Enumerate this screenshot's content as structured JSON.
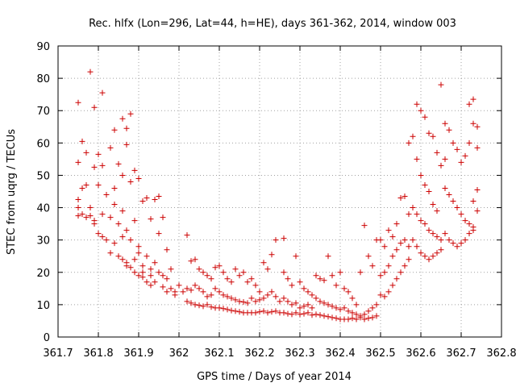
{
  "chart_data": {
    "type": "scatter",
    "title": "Rec. hlfx (Lon=296, Lat=44, h=HE), days 361-362, 2014, window 003",
    "xlabel": "GPS time / Days of year 2014",
    "ylabel": "STEC from uqrg / TECUs",
    "xlim": [
      361.7,
      362.8
    ],
    "ylim": [
      0,
      90
    ],
    "x_ticks": [
      361.7,
      361.8,
      361.9,
      362.0,
      362.1,
      362.2,
      362.3,
      362.4,
      362.5,
      362.6,
      362.7,
      362.8
    ],
    "x_tick_labels": [
      "361.7",
      "361.8",
      "361.9",
      "362",
      "362.1",
      "362.2",
      "362.3",
      "362.4",
      "362.5",
      "362.6",
      "362.7",
      "362.8"
    ],
    "y_ticks": [
      0,
      10,
      20,
      30,
      40,
      50,
      60,
      70,
      80,
      90
    ],
    "y_tick_labels": [
      "0",
      "10",
      "20",
      "30",
      "40",
      "50",
      "60",
      "70",
      "80",
      "90"
    ],
    "marker": "+",
    "color": "#cc0000",
    "grid": true,
    "points": [
      [
        361.75,
        72.5
      ],
      [
        361.78,
        82
      ],
      [
        361.79,
        71
      ],
      [
        361.81,
        75.5
      ],
      [
        361.84,
        64
      ],
      [
        361.86,
        67.5
      ],
      [
        361.88,
        69
      ],
      [
        361.87,
        64.5
      ],
      [
        361.76,
        60.5
      ],
      [
        361.77,
        57
      ],
      [
        361.8,
        56.5
      ],
      [
        361.83,
        58.5
      ],
      [
        361.85,
        53.5
      ],
      [
        361.87,
        59.5
      ],
      [
        361.89,
        51.5
      ],
      [
        361.9,
        49
      ],
      [
        361.75,
        54
      ],
      [
        361.77,
        47
      ],
      [
        361.79,
        52.5
      ],
      [
        361.81,
        53
      ],
      [
        361.84,
        46
      ],
      [
        361.86,
        50
      ],
      [
        361.88,
        48
      ],
      [
        361.91,
        42
      ],
      [
        361.75,
        42.5
      ],
      [
        361.76,
        46
      ],
      [
        361.78,
        40
      ],
      [
        361.8,
        47
      ],
      [
        361.82,
        44
      ],
      [
        361.84,
        41
      ],
      [
        361.86,
        39
      ],
      [
        361.89,
        36
      ],
      [
        361.75,
        40
      ],
      [
        361.76,
        38
      ],
      [
        361.78,
        37.5
      ],
      [
        361.79,
        36
      ],
      [
        361.81,
        38
      ],
      [
        361.83,
        37
      ],
      [
        361.85,
        35
      ],
      [
        361.87,
        33
      ],
      [
        361.75,
        37.5
      ],
      [
        361.77,
        37
      ],
      [
        361.8,
        32
      ],
      [
        361.82,
        30
      ],
      [
        361.84,
        29
      ],
      [
        361.86,
        31
      ],
      [
        361.88,
        30
      ],
      [
        361.9,
        28
      ],
      [
        361.79,
        35
      ],
      [
        361.81,
        31
      ],
      [
        361.83,
        26
      ],
      [
        361.85,
        25
      ],
      [
        361.87,
        23
      ],
      [
        361.89,
        24
      ],
      [
        361.91,
        22
      ],
      [
        361.93,
        21
      ],
      [
        361.86,
        24
      ],
      [
        361.87,
        22
      ],
      [
        361.88,
        21.5
      ],
      [
        361.89,
        20
      ],
      [
        361.9,
        19
      ],
      [
        361.91,
        18.5
      ],
      [
        361.92,
        17
      ],
      [
        361.93,
        16
      ],
      [
        361.92,
        43
      ],
      [
        361.94,
        42.5
      ],
      [
        361.95,
        43.5
      ],
      [
        361.96,
        37
      ],
      [
        361.93,
        36.5
      ],
      [
        361.95,
        32
      ],
      [
        361.97,
        27
      ],
      [
        361.98,
        21
      ],
      [
        361.9,
        26
      ],
      [
        361.92,
        25
      ],
      [
        361.94,
        23
      ],
      [
        361.95,
        20
      ],
      [
        361.96,
        19
      ],
      [
        361.97,
        18
      ],
      [
        361.98,
        15
      ],
      [
        361.99,
        14
      ],
      [
        361.91,
        20
      ],
      [
        361.93,
        19
      ],
      [
        361.94,
        17
      ],
      [
        361.96,
        15.5
      ],
      [
        361.97,
        14
      ],
      [
        361.99,
        13
      ],
      [
        362.0,
        16
      ],
      [
        362.01,
        14
      ],
      [
        362.02,
        31.5
      ],
      [
        362.03,
        23.5
      ],
      [
        362.04,
        24
      ],
      [
        362.05,
        21
      ],
      [
        362.06,
        20
      ],
      [
        362.07,
        19
      ],
      [
        362.08,
        18
      ],
      [
        362.09,
        21.5
      ],
      [
        362.02,
        15
      ],
      [
        362.03,
        14.5
      ],
      [
        362.04,
        16
      ],
      [
        362.05,
        15
      ],
      [
        362.06,
        14
      ],
      [
        362.07,
        12.5
      ],
      [
        362.08,
        13
      ],
      [
        362.09,
        15
      ],
      [
        362.02,
        11
      ],
      [
        362.03,
        10.5
      ],
      [
        362.04,
        10
      ],
      [
        362.05,
        9.8
      ],
      [
        362.06,
        9.5
      ],
      [
        362.07,
        10
      ],
      [
        362.08,
        9.3
      ],
      [
        362.09,
        9
      ],
      [
        362.1,
        22
      ],
      [
        362.11,
        20
      ],
      [
        362.12,
        18
      ],
      [
        362.13,
        17
      ],
      [
        362.14,
        21
      ],
      [
        362.15,
        19
      ],
      [
        362.16,
        20
      ],
      [
        362.17,
        17
      ],
      [
        362.1,
        14
      ],
      [
        362.11,
        13
      ],
      [
        362.12,
        12.5
      ],
      [
        362.13,
        12
      ],
      [
        362.14,
        11.5
      ],
      [
        362.15,
        11
      ],
      [
        362.16,
        10.8
      ],
      [
        362.17,
        10.5
      ],
      [
        362.1,
        9
      ],
      [
        362.11,
        8.8
      ],
      [
        362.12,
        8.5
      ],
      [
        362.13,
        8.2
      ],
      [
        362.14,
        8
      ],
      [
        362.15,
        7.8
      ],
      [
        362.16,
        7.5
      ],
      [
        362.17,
        7.5
      ],
      [
        362.18,
        18
      ],
      [
        362.19,
        16
      ],
      [
        362.2,
        14
      ],
      [
        362.21,
        23
      ],
      [
        362.22,
        21
      ],
      [
        362.23,
        25.5
      ],
      [
        362.24,
        30
      ],
      [
        362.26,
        30.5
      ],
      [
        362.18,
        12
      ],
      [
        362.19,
        11
      ],
      [
        362.2,
        11.5
      ],
      [
        362.21,
        12
      ],
      [
        362.22,
        13
      ],
      [
        362.23,
        14
      ],
      [
        362.24,
        12.5
      ],
      [
        362.25,
        11
      ],
      [
        362.18,
        7.5
      ],
      [
        362.19,
        7.5
      ],
      [
        362.2,
        7.8
      ],
      [
        362.21,
        8
      ],
      [
        362.22,
        7.5
      ],
      [
        362.23,
        7.8
      ],
      [
        362.24,
        8
      ],
      [
        362.25,
        7.5
      ],
      [
        362.26,
        20
      ],
      [
        362.27,
        18
      ],
      [
        362.28,
        16
      ],
      [
        362.29,
        25
      ],
      [
        362.3,
        17
      ],
      [
        362.31,
        15
      ],
      [
        362.32,
        14
      ],
      [
        362.33,
        13
      ],
      [
        362.26,
        12
      ],
      [
        362.27,
        11
      ],
      [
        362.28,
        10
      ],
      [
        362.29,
        10.5
      ],
      [
        362.3,
        9
      ],
      [
        362.31,
        9.5
      ],
      [
        362.32,
        10
      ],
      [
        362.33,
        9
      ],
      [
        362.26,
        7.5
      ],
      [
        362.27,
        7.2
      ],
      [
        362.28,
        7
      ],
      [
        362.29,
        7.5
      ],
      [
        362.3,
        7
      ],
      [
        362.31,
        7.2
      ],
      [
        362.32,
        7.5
      ],
      [
        362.33,
        6.8
      ],
      [
        362.34,
        19
      ],
      [
        362.35,
        18
      ],
      [
        362.36,
        17.5
      ],
      [
        362.37,
        25
      ],
      [
        362.38,
        19
      ],
      [
        362.39,
        16
      ],
      [
        362.4,
        20
      ],
      [
        362.41,
        15
      ],
      [
        362.34,
        12
      ],
      [
        362.35,
        11
      ],
      [
        362.36,
        10.5
      ],
      [
        362.37,
        10
      ],
      [
        362.38,
        9.5
      ],
      [
        362.39,
        9
      ],
      [
        362.4,
        8.5
      ],
      [
        362.41,
        9
      ],
      [
        362.34,
        7
      ],
      [
        362.35,
        6.8
      ],
      [
        362.36,
        6.5
      ],
      [
        362.37,
        6.3
      ],
      [
        362.38,
        6
      ],
      [
        362.39,
        5.8
      ],
      [
        362.4,
        5.5
      ],
      [
        362.41,
        5.5
      ],
      [
        362.42,
        14
      ],
      [
        362.43,
        12
      ],
      [
        362.44,
        10
      ],
      [
        362.45,
        20
      ],
      [
        362.46,
        34.5
      ],
      [
        362.47,
        25
      ],
      [
        362.48,
        22
      ],
      [
        362.49,
        30
      ],
      [
        362.42,
        8
      ],
      [
        362.43,
        7.5
      ],
      [
        362.44,
        7
      ],
      [
        362.45,
        6.5
      ],
      [
        362.46,
        7
      ],
      [
        362.47,
        8
      ],
      [
        362.48,
        9
      ],
      [
        362.49,
        10
      ],
      [
        362.42,
        5.5
      ],
      [
        362.43,
        5.8
      ],
      [
        362.44,
        5.5
      ],
      [
        362.45,
        6
      ],
      [
        362.46,
        5.5
      ],
      [
        362.47,
        5.8
      ],
      [
        362.48,
        6
      ],
      [
        362.49,
        6.5
      ],
      [
        362.5,
        30
      ],
      [
        362.51,
        28
      ],
      [
        362.52,
        33
      ],
      [
        362.53,
        31
      ],
      [
        362.54,
        35
      ],
      [
        362.55,
        43
      ],
      [
        362.56,
        43.5
      ],
      [
        362.57,
        38
      ],
      [
        362.5,
        19
      ],
      [
        362.51,
        20
      ],
      [
        362.52,
        22
      ],
      [
        362.53,
        25
      ],
      [
        362.54,
        27
      ],
      [
        362.55,
        29
      ],
      [
        362.56,
        30
      ],
      [
        362.57,
        28
      ],
      [
        362.5,
        13
      ],
      [
        362.51,
        12.5
      ],
      [
        362.52,
        14
      ],
      [
        362.53,
        16
      ],
      [
        362.54,
        18
      ],
      [
        362.55,
        20
      ],
      [
        362.56,
        22
      ],
      [
        362.57,
        24
      ],
      [
        362.57,
        60
      ],
      [
        362.58,
        62
      ],
      [
        362.59,
        55
      ],
      [
        362.6,
        50
      ],
      [
        362.61,
        47
      ],
      [
        362.62,
        45
      ],
      [
        362.63,
        41
      ],
      [
        362.64,
        39
      ],
      [
        362.59,
        72
      ],
      [
        362.6,
        70
      ],
      [
        362.61,
        68
      ],
      [
        362.62,
        63
      ],
      [
        362.63,
        62
      ],
      [
        362.64,
        57
      ],
      [
        362.65,
        53
      ],
      [
        362.66,
        55
      ],
      [
        362.58,
        40
      ],
      [
        362.59,
        38
      ],
      [
        362.6,
        36
      ],
      [
        362.61,
        35
      ],
      [
        362.62,
        33
      ],
      [
        362.63,
        32
      ],
      [
        362.64,
        31
      ],
      [
        362.65,
        30
      ],
      [
        362.58,
        30
      ],
      [
        362.59,
        28
      ],
      [
        362.6,
        26
      ],
      [
        362.61,
        25
      ],
      [
        362.62,
        24
      ],
      [
        362.63,
        25
      ],
      [
        362.64,
        26
      ],
      [
        362.65,
        27
      ],
      [
        362.65,
        78
      ],
      [
        362.66,
        66
      ],
      [
        362.67,
        64
      ],
      [
        362.68,
        60
      ],
      [
        362.69,
        58
      ],
      [
        362.7,
        54
      ],
      [
        362.71,
        56
      ],
      [
        362.72,
        60
      ],
      [
        362.66,
        46
      ],
      [
        362.67,
        44
      ],
      [
        362.68,
        42
      ],
      [
        362.69,
        40
      ],
      [
        362.7,
        38
      ],
      [
        362.71,
        36
      ],
      [
        362.72,
        35
      ],
      [
        362.73,
        34
      ],
      [
        362.66,
        32
      ],
      [
        362.67,
        30
      ],
      [
        362.68,
        29
      ],
      [
        362.69,
        28
      ],
      [
        362.7,
        29
      ],
      [
        362.71,
        30
      ],
      [
        362.72,
        32
      ],
      [
        362.73,
        33
      ],
      [
        362.72,
        72
      ],
      [
        362.73,
        73.5
      ],
      [
        362.74,
        65
      ],
      [
        362.73,
        66
      ],
      [
        362.74,
        58.5
      ],
      [
        362.74,
        45.5
      ],
      [
        362.74,
        39
      ],
      [
        362.73,
        42
      ]
    ]
  }
}
